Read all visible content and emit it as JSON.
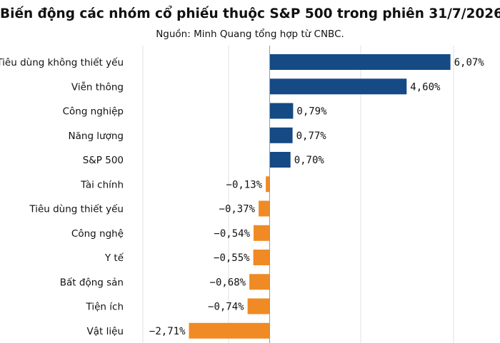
{
  "chart_data": {
    "type": "bar",
    "orientation": "horizontal",
    "title": "Biến động các nhóm cổ phiếu thuộc S&P 500 trong phiên 31/7/2026",
    "subtitle": "Nguồn: Minh Quang tổng hợp từ CNBC.",
    "categories": [
      "Tiêu dùng không thiết yếu",
      "Viễn thông",
      "Công nghiệp",
      "Năng lượng",
      "S&P 500",
      "Tài chính",
      "Tiêu dùng thiết yếu",
      "Công nghệ",
      "Y tế",
      "Bất động sản",
      "Tiện ích",
      "Vật liệu"
    ],
    "values": [
      6.07,
      4.6,
      0.79,
      0.77,
      0.7,
      -0.13,
      -0.37,
      -0.54,
      -0.55,
      -0.68,
      -0.74,
      -2.71
    ],
    "value_labels": [
      "6,07%",
      "4,60%",
      "0,79%",
      "0,77%",
      "0,70%",
      "−0,13%",
      "−0,37%",
      "−0,54%",
      "−0,55%",
      "−0,68%",
      "−0,74%",
      "−2,71%"
    ],
    "colors": {
      "positive": "#154a85",
      "negative": "#f08a24",
      "grid": "#e2e2e2",
      "axis": "#9a9a9a"
    },
    "grid": true,
    "xlim": [
      -2.9,
      7.3
    ]
  }
}
